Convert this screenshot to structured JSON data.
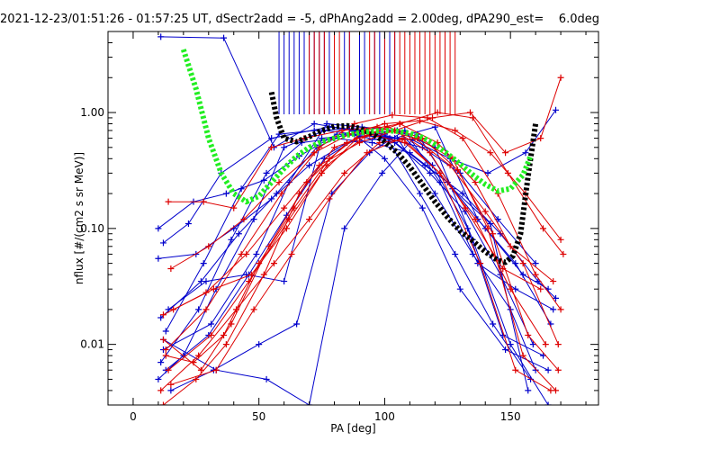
{
  "chart_data": {
    "type": "line",
    "title": "2021-12-23/01:51:26 - 01:57:25 UT, dSectr2add = -5, dPhAng2add = 2.00deg, dPA290_est=    6.0deg",
    "xlabel": "PA [deg]",
    "ylabel": "nflux [#/(cm2 s sr MeV)]",
    "xlim": [
      -10,
      185
    ],
    "ylim": [
      0.003,
      5.0
    ],
    "yscale": "log",
    "grid": false,
    "xticks": [
      {
        "value": 0,
        "label": "0"
      },
      {
        "value": 50,
        "label": "50"
      },
      {
        "value": 100,
        "label": "100"
      },
      {
        "value": 150,
        "label": "150"
      }
    ],
    "yticks": [
      {
        "value": 0.01,
        "label": "0.01"
      },
      {
        "value": 0.1,
        "label": "0.10"
      },
      {
        "value": 1.0,
        "label": "1.00"
      }
    ],
    "colors": {
      "blue": "#0000cc",
      "red": "#dd0000",
      "green": "#22ee22",
      "black": "#000000"
    },
    "series": [
      {
        "kind": "fit",
        "color": "black",
        "x": [
          55,
          57,
          60,
          65,
          70,
          75,
          80,
          85,
          90,
          95,
          100,
          105,
          110,
          115,
          120,
          125,
          130,
          135,
          140,
          145,
          148,
          151,
          154,
          157,
          160
        ],
        "y": [
          1.5,
          0.9,
          0.6,
          0.56,
          0.62,
          0.7,
          0.76,
          0.77,
          0.73,
          0.66,
          0.56,
          0.45,
          0.34,
          0.24,
          0.17,
          0.125,
          0.095,
          0.078,
          0.063,
          0.053,
          0.051,
          0.058,
          0.09,
          0.28,
          0.8
        ]
      },
      {
        "kind": "fit",
        "color": "green",
        "x": [
          20,
          25,
          30,
          35,
          40,
          45,
          50,
          55,
          60,
          65,
          70,
          75,
          80,
          85,
          90,
          95,
          100,
          105,
          110,
          115,
          120,
          125,
          130,
          135,
          140,
          145,
          150,
          155,
          158
        ],
        "y": [
          3.5,
          1.6,
          0.6,
          0.3,
          0.2,
          0.17,
          0.19,
          0.25,
          0.33,
          0.42,
          0.5,
          0.56,
          0.6,
          0.64,
          0.67,
          0.69,
          0.7,
          0.69,
          0.66,
          0.61,
          0.53,
          0.44,
          0.36,
          0.29,
          0.24,
          0.21,
          0.22,
          0.29,
          0.42
        ]
      },
      {
        "kind": "trace",
        "color": "blue",
        "x": [
          12,
          22,
          35,
          55,
          78,
          92,
          105,
          120,
          135,
          150,
          160
        ],
        "y": [
          0.075,
          0.11,
          0.3,
          0.6,
          0.75,
          0.7,
          0.6,
          0.2,
          0.06,
          0.02,
          0.006
        ]
      },
      {
        "kind": "trace",
        "color": "blue",
        "x": [
          10,
          20,
          33,
          48,
          60,
          76,
          88,
          100,
          115,
          130,
          148,
          165
        ],
        "y": [
          0.005,
          0.008,
          0.03,
          0.12,
          0.5,
          0.7,
          0.65,
          0.4,
          0.15,
          0.03,
          0.009,
          0.006
        ]
      },
      {
        "kind": "trace",
        "color": "blue",
        "x": [
          11,
          26,
          39,
          53,
          67,
          80,
          95,
          110,
          125,
          140,
          155,
          165
        ],
        "y": [
          0.007,
          0.02,
          0.08,
          0.3,
          0.55,
          0.6,
          0.55,
          0.45,
          0.25,
          0.1,
          0.04,
          0.03
        ]
      },
      {
        "kind": "trace",
        "color": "blue",
        "x": [
          10,
          25,
          40,
          55,
          70,
          85,
          100,
          115,
          130,
          145,
          160
        ],
        "y": [
          0.055,
          0.06,
          0.1,
          0.18,
          0.35,
          0.55,
          0.6,
          0.5,
          0.3,
          0.12,
          0.05
        ]
      },
      {
        "kind": "trace",
        "color": "blue",
        "x": [
          13,
          28,
          43,
          58,
          72,
          86,
          100,
          114,
          128,
          143,
          158
        ],
        "y": [
          0.013,
          0.05,
          0.22,
          0.65,
          0.7,
          0.72,
          0.65,
          0.2,
          0.06,
          0.015,
          0.005
        ]
      },
      {
        "kind": "trace",
        "color": "blue",
        "x": [
          12,
          31,
          49,
          62,
          77,
          91,
          105,
          119,
          133,
          147,
          163
        ],
        "y": [
          0.009,
          0.015,
          0.06,
          0.25,
          0.8,
          0.75,
          0.7,
          0.35,
          0.1,
          0.012,
          0.008
        ]
      },
      {
        "kind": "trace",
        "color": "blue",
        "x": [
          10,
          24,
          37,
          52,
          66,
          81,
          96,
          111,
          126,
          141,
          156,
          168
        ],
        "y": [
          0.1,
          0.17,
          0.2,
          0.26,
          0.42,
          0.65,
          0.62,
          0.58,
          0.4,
          0.3,
          0.45,
          1.05
        ]
      },
      {
        "kind": "trace",
        "color": "blue",
        "x": [
          11,
          36,
          56,
          72,
          88,
          104,
          120,
          137,
          152,
          166
        ],
        "y": [
          4.5,
          4.4,
          0.5,
          0.8,
          0.7,
          0.6,
          0.75,
          0.12,
          0.05,
          0.015
        ]
      },
      {
        "kind": "trace",
        "color": "blue",
        "x": [
          14,
          29,
          45,
          60,
          75,
          90,
          105,
          120,
          135,
          150,
          165
        ],
        "y": [
          0.02,
          0.035,
          0.04,
          0.035,
          0.6,
          0.65,
          0.7,
          0.5,
          0.08,
          0.01,
          0.003
        ]
      },
      {
        "kind": "trace",
        "color": "blue",
        "x": [
          15,
          32,
          50,
          65,
          79,
          94,
          108,
          122,
          137,
          152,
          167
        ],
        "y": [
          0.004,
          0.006,
          0.01,
          0.015,
          0.2,
          0.45,
          0.7,
          0.25,
          0.05,
          0.03,
          0.02
        ]
      },
      {
        "kind": "trace",
        "color": "blue",
        "x": [
          12,
          33,
          53,
          70,
          84,
          99,
          113,
          127,
          142,
          157
        ],
        "y": [
          0.011,
          0.006,
          0.005,
          0.003,
          0.1,
          0.3,
          0.65,
          0.22,
          0.11,
          0.004
        ]
      },
      {
        "kind": "trace",
        "color": "blue",
        "x": [
          11,
          27,
          42,
          57,
          73,
          87,
          102,
          116,
          131,
          146,
          161,
          168
        ],
        "y": [
          0.017,
          0.035,
          0.09,
          0.2,
          0.5,
          0.7,
          0.6,
          0.35,
          0.2,
          0.09,
          0.035,
          0.025
        ]
      },
      {
        "kind": "trace",
        "color": "blue",
        "x": [
          13,
          30,
          46,
          61,
          76,
          90,
          104,
          118,
          132,
          146,
          159
        ],
        "y": [
          0.006,
          0.012,
          0.04,
          0.13,
          0.4,
          0.62,
          0.55,
          0.3,
          0.14,
          0.04,
          0.01
        ]
      },
      {
        "kind": "trace",
        "color": "red",
        "x": [
          14,
          28,
          40,
          55,
          68,
          83,
          97,
          112,
          126,
          140,
          155,
          169
        ],
        "y": [
          0.17,
          0.17,
          0.15,
          0.5,
          0.6,
          0.7,
          0.75,
          0.6,
          0.35,
          0.14,
          0.05,
          0.01
        ]
      },
      {
        "kind": "trace",
        "color": "red",
        "x": [
          12,
          25,
          37,
          52,
          66,
          80,
          94,
          108,
          122,
          136,
          150,
          164
        ],
        "y": [
          0.003,
          0.005,
          0.01,
          0.04,
          0.2,
          0.5,
          0.65,
          0.55,
          0.3,
          0.12,
          0.03,
          0.01
        ]
      },
      {
        "kind": "trace",
        "color": "red",
        "x": [
          15,
          30,
          44,
          58,
          72,
          86,
          100,
          114,
          128,
          142,
          156,
          170
        ],
        "y": [
          0.045,
          0.07,
          0.12,
          0.25,
          0.45,
          0.65,
          0.8,
          0.85,
          0.7,
          0.45,
          0.2,
          0.08
        ]
      },
      {
        "kind": "trace",
        "color": "red",
        "x": [
          11,
          26,
          41,
          56,
          70,
          84,
          98,
          113,
          127,
          141,
          155,
          168
        ],
        "y": [
          0.004,
          0.008,
          0.02,
          0.05,
          0.12,
          0.3,
          0.55,
          0.6,
          0.4,
          0.1,
          0.008,
          0.004
        ]
      },
      {
        "kind": "trace",
        "color": "red",
        "x": [
          13,
          29,
          43,
          59,
          74,
          88,
          103,
          117,
          131,
          145,
          160,
          170
        ],
        "y": [
          0.009,
          0.02,
          0.06,
          0.2,
          0.5,
          0.8,
          0.95,
          0.9,
          0.6,
          0.2,
          0.04,
          0.02
        ]
      },
      {
        "kind": "trace",
        "color": "red",
        "x": [
          12,
          27,
          39,
          54,
          69,
          85,
          101,
          115,
          129,
          143,
          157,
          169
        ],
        "y": [
          0.011,
          0.006,
          0.015,
          0.07,
          0.25,
          0.55,
          0.75,
          0.6,
          0.32,
          0.09,
          0.012,
          0.006
        ]
      },
      {
        "kind": "trace",
        "color": "red",
        "x": [
          16,
          32,
          47,
          61,
          75,
          89,
          104,
          118,
          132,
          147,
          162
        ],
        "y": [
          0.02,
          0.03,
          0.04,
          0.1,
          0.3,
          0.6,
          0.7,
          0.45,
          0.15,
          0.045,
          0.03
        ]
      },
      {
        "kind": "trace",
        "color": "red",
        "x": [
          14,
          31,
          46,
          62,
          77,
          92,
          106,
          121,
          135,
          149,
          163,
          171
        ],
        "y": [
          0.006,
          0.012,
          0.035,
          0.12,
          0.35,
          0.62,
          0.8,
          1.0,
          0.9,
          0.3,
          0.1,
          0.06
        ]
      },
      {
        "kind": "trace",
        "color": "red",
        "x": [
          13,
          24,
          36,
          50,
          64,
          78,
          92,
          106,
          121,
          136,
          150,
          167
        ],
        "y": [
          0.008,
          0.007,
          0.012,
          0.05,
          0.15,
          0.4,
          0.7,
          0.8,
          0.55,
          0.25,
          0.07,
          0.035
        ]
      },
      {
        "kind": "trace",
        "color": "red",
        "x": [
          15,
          33,
          48,
          63,
          78,
          93,
          107,
          122,
          138,
          152,
          166
        ],
        "y": [
          0.0045,
          0.006,
          0.02,
          0.06,
          0.18,
          0.45,
          0.6,
          0.3,
          0.05,
          0.006,
          0.004
        ]
      },
      {
        "kind": "trace",
        "color": "red",
        "x": [
          12,
          29,
          45,
          60,
          74,
          90,
          104,
          119,
          134,
          148,
          162,
          170
        ],
        "y": [
          0.018,
          0.028,
          0.06,
          0.15,
          0.35,
          0.55,
          0.7,
          0.9,
          1.0,
          0.45,
          0.6,
          2.0
        ]
      }
    ],
    "spikes": {
      "blue": [
        58,
        60,
        62,
        64,
        66,
        68,
        70,
        72,
        74,
        76,
        78,
        84,
        86,
        90,
        92,
        96,
        98,
        100,
        102,
        104
      ],
      "red": [
        70,
        72,
        74,
        76,
        80,
        82,
        86,
        94,
        96,
        100,
        104,
        106,
        108,
        110,
        112,
        114,
        116,
        118,
        120,
        122,
        124,
        126,
        128
      ]
    }
  }
}
